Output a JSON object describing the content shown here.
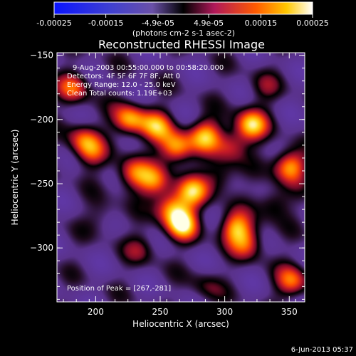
{
  "chart_data": {
    "type": "heatmap",
    "title": "Reconstructed RHESSI Image",
    "xlabel": "Heliocentric X (arcsec)",
    "ylabel": "Heliocentric Y (arcsec)",
    "xlim": [
      170,
      362
    ],
    "ylim": [
      -342,
      -148
    ],
    "xticks": [
      200,
      250,
      300,
      350
    ],
    "yticks": [
      -150,
      -200,
      -250,
      -300
    ],
    "colorbar": {
      "range": [
        -0.00025,
        0.00025
      ],
      "tick_labels": [
        "-0.00025",
        "-0.00015",
        "-4.9e-05",
        "4.9e-05",
        "0.00015",
        "0.00025"
      ],
      "tick_values": [
        -0.00025,
        -0.00015,
        -4.9e-05,
        4.9e-05,
        0.00015,
        0.00025
      ],
      "unit_label": "(photons cm-2 s-1 asec-2)"
    },
    "annotations": [
      "9-Aug-2003 00:55:00.000 to 00:58:20.000",
      "Detectors: 4F 5F 6F 7F 8F, Att 0",
      "Energy Range: 12.0 - 25.0 keV",
      "Clean     Total counts: 1.19E+03"
    ],
    "peak_label": "Position of Peak = [267,-281]",
    "peak": [
      267,
      -281
    ],
    "sources": [
      {
        "x": 267,
        "y": -281,
        "amp": 1.0
      },
      {
        "x": 258,
        "y": -268,
        "amp": 0.8
      },
      {
        "x": 275,
        "y": -256,
        "amp": 0.8
      },
      {
        "x": 245,
        "y": -248,
        "amp": 0.7
      },
      {
        "x": 228,
        "y": -242,
        "amp": 0.7
      },
      {
        "x": 262,
        "y": -222,
        "amp": 0.95
      },
      {
        "x": 247,
        "y": -205,
        "amp": 0.75
      },
      {
        "x": 285,
        "y": -212,
        "amp": 0.85
      },
      {
        "x": 320,
        "y": -204,
        "amp": 0.95
      },
      {
        "x": 305,
        "y": -220,
        "amp": 0.55
      },
      {
        "x": 296,
        "y": -244,
        "amp": 0.45
      },
      {
        "x": 308,
        "y": -284,
        "amp": 0.85
      },
      {
        "x": 318,
        "y": -296,
        "amp": 0.6
      },
      {
        "x": 226,
        "y": -200,
        "amp": 0.9
      },
      {
        "x": 190,
        "y": -215,
        "amp": 0.6
      },
      {
        "x": 196,
        "y": -226,
        "amp": 0.5
      },
      {
        "x": 350,
        "y": -236,
        "amp": 0.95
      },
      {
        "x": 338,
        "y": -265,
        "amp": 0.45
      },
      {
        "x": 352,
        "y": -326,
        "amp": 0.7
      },
      {
        "x": 183,
        "y": -175,
        "amp": 0.65
      },
      {
        "x": 235,
        "y": -300,
        "amp": 0.35
      },
      {
        "x": 285,
        "y": -330,
        "amp": 0.3
      },
      {
        "x": 205,
        "y": -275,
        "amp": 0.25
      },
      {
        "x": 330,
        "y": -175,
        "amp": 0.3
      }
    ]
  },
  "footer": {
    "date": "6-Jun-2013 05:37"
  }
}
